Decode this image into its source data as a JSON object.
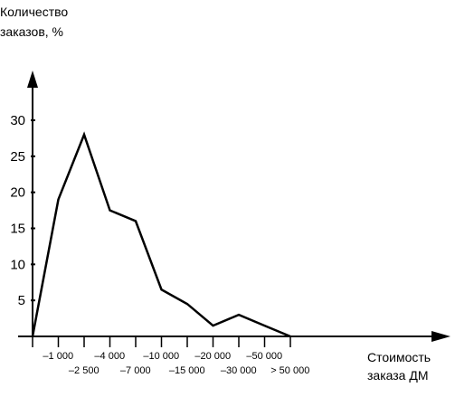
{
  "chart_data": {
    "type": "line",
    "ylabel_lines": [
      "Количество",
      "заказов, %"
    ],
    "xlabel_lines": [
      "Стоимость",
      "заказа ДМ"
    ],
    "y_ticks": [
      5,
      10,
      15,
      20,
      25,
      30
    ],
    "ylim": [
      0,
      30
    ],
    "grid": false,
    "legend": "none",
    "x_tick_labels_upper": [
      "–1 000",
      "–4 000",
      "–10 000",
      "–20 000",
      "–50 000"
    ],
    "x_tick_labels_lower": [
      "–2 500",
      "–7 000",
      "–15 000",
      "–30 000",
      "> 50 000"
    ],
    "series": [
      {
        "values": [
          0,
          19,
          28,
          17.5,
          16,
          6.5,
          4.5,
          1.5,
          3,
          1.5,
          0
        ]
      }
    ],
    "line_color": "#000000"
  }
}
